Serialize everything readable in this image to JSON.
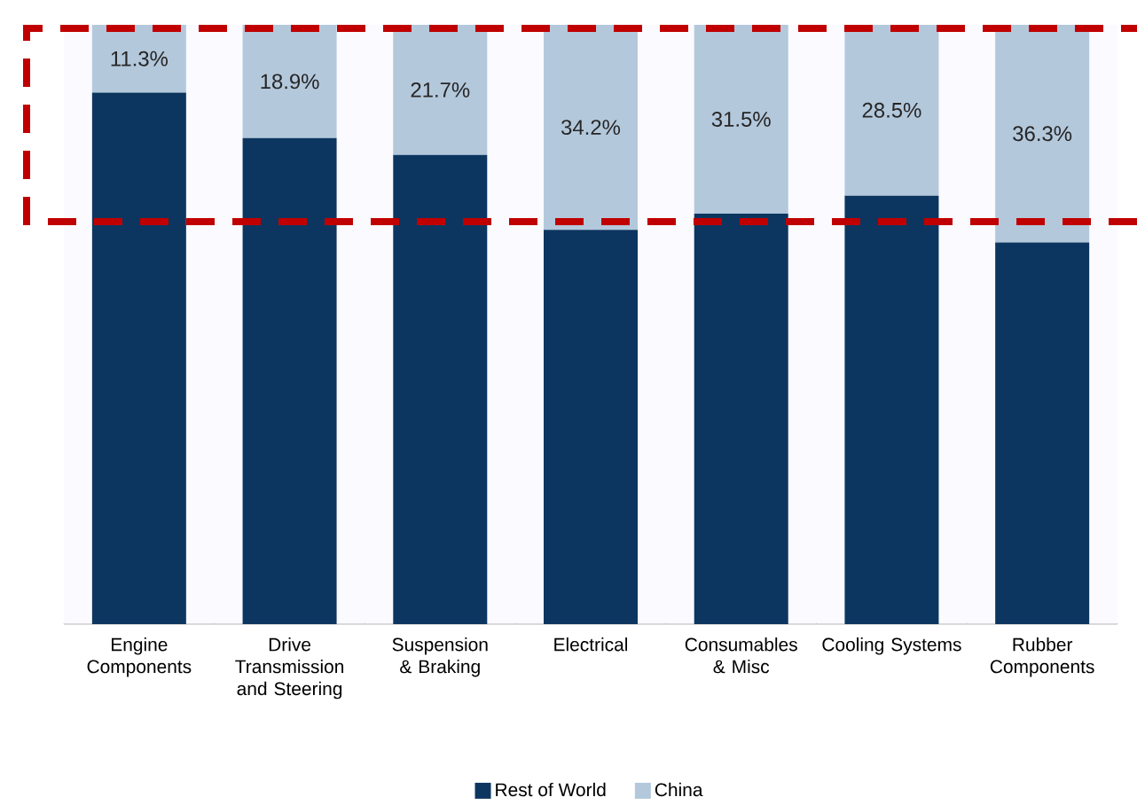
{
  "chart_data": {
    "type": "bar",
    "stacked": true,
    "categories": [
      "Engine Components",
      "Drive Transmission and Steering",
      "Suspension & Braking",
      "Electrical",
      "Consumables & Misc",
      "Cooling Systems",
      "Rubber Components"
    ],
    "series": [
      {
        "name": "Rest of World",
        "color": "#0c3660",
        "values": [
          88.7,
          81.1,
          78.3,
          65.8,
          68.5,
          71.5,
          63.7
        ]
      },
      {
        "name": "China",
        "color": "#b4c8dc",
        "values": [
          11.3,
          18.9,
          21.7,
          34.2,
          31.5,
          28.5,
          36.3
        ],
        "value_labels": [
          "11.3%",
          "18.9%",
          "21.7%",
          "34.2%",
          "31.5%",
          "28.5%",
          "36.3%"
        ]
      }
    ],
    "ylim": [
      0,
      100
    ],
    "tick_labels": "x",
    "legend": "bottom",
    "grid": false
  }
}
